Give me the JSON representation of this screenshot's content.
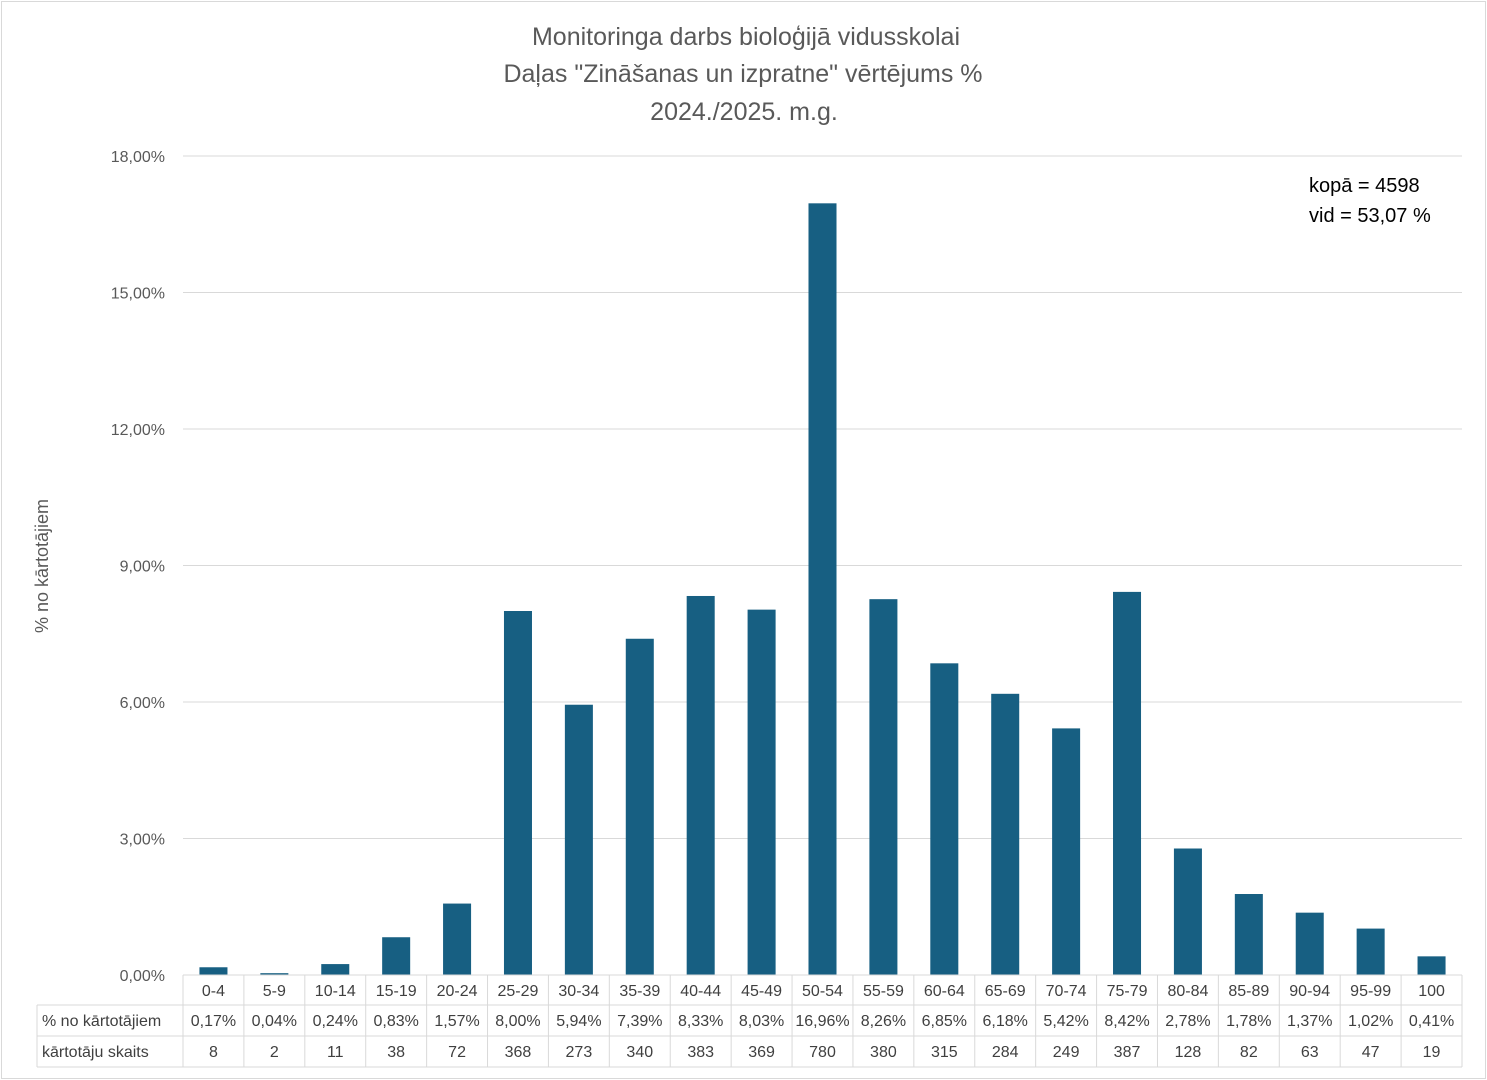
{
  "chart_data": {
    "type": "bar",
    "title_lines": [
      "Monitoringa darbs bioloģijā vidusskolai",
      "Daļas \"Zināšanas un izpratne\" vērtējums %",
      "2024./2025. m.g."
    ],
    "ylabel": "% no kārtotājiem",
    "xlabel": "",
    "ylim": [
      0,
      18
    ],
    "yticks": [
      "0,00%",
      "3,00%",
      "6,00%",
      "9,00%",
      "12,00%",
      "15,00%",
      "18,00%"
    ],
    "grid": true,
    "bar_color": "#175F82",
    "categories": [
      "0-4",
      "5-9",
      "10-14",
      "15-19",
      "20-24",
      "25-29",
      "30-34",
      "35-39",
      "40-44",
      "45-49",
      "50-54",
      "55-59",
      "60-64",
      "65-69",
      "70-74",
      "75-79",
      "80-84",
      "85-89",
      "90-94",
      "95-99",
      "100"
    ],
    "values": [
      0.17,
      0.04,
      0.24,
      0.83,
      1.57,
      8.0,
      5.94,
      7.39,
      8.33,
      8.03,
      16.96,
      8.26,
      6.85,
      6.18,
      5.42,
      8.42,
      2.78,
      1.78,
      1.37,
      1.02,
      0.41
    ],
    "table": {
      "rows": [
        {
          "label": "% no kārtotājiem",
          "cells": [
            "0,17%",
            "0,04%",
            "0,24%",
            "0,83%",
            "1,57%",
            "8,00%",
            "5,94%",
            "7,39%",
            "8,33%",
            "8,03%",
            "16,96%",
            "8,26%",
            "6,85%",
            "6,18%",
            "5,42%",
            "8,42%",
            "2,78%",
            "1,78%",
            "1,37%",
            "1,02%",
            "0,41%"
          ]
        },
        {
          "label": "kārtotāju skaits",
          "cells": [
            "8",
            "2",
            "11",
            "38",
            "72",
            "368",
            "273",
            "340",
            "383",
            "369",
            "780",
            "380",
            "315",
            "284",
            "249",
            "387",
            "128",
            "82",
            "63",
            "47",
            "19"
          ]
        }
      ]
    },
    "annotations": [
      "kopā = 4598",
      "vid = 53,07 %"
    ]
  }
}
